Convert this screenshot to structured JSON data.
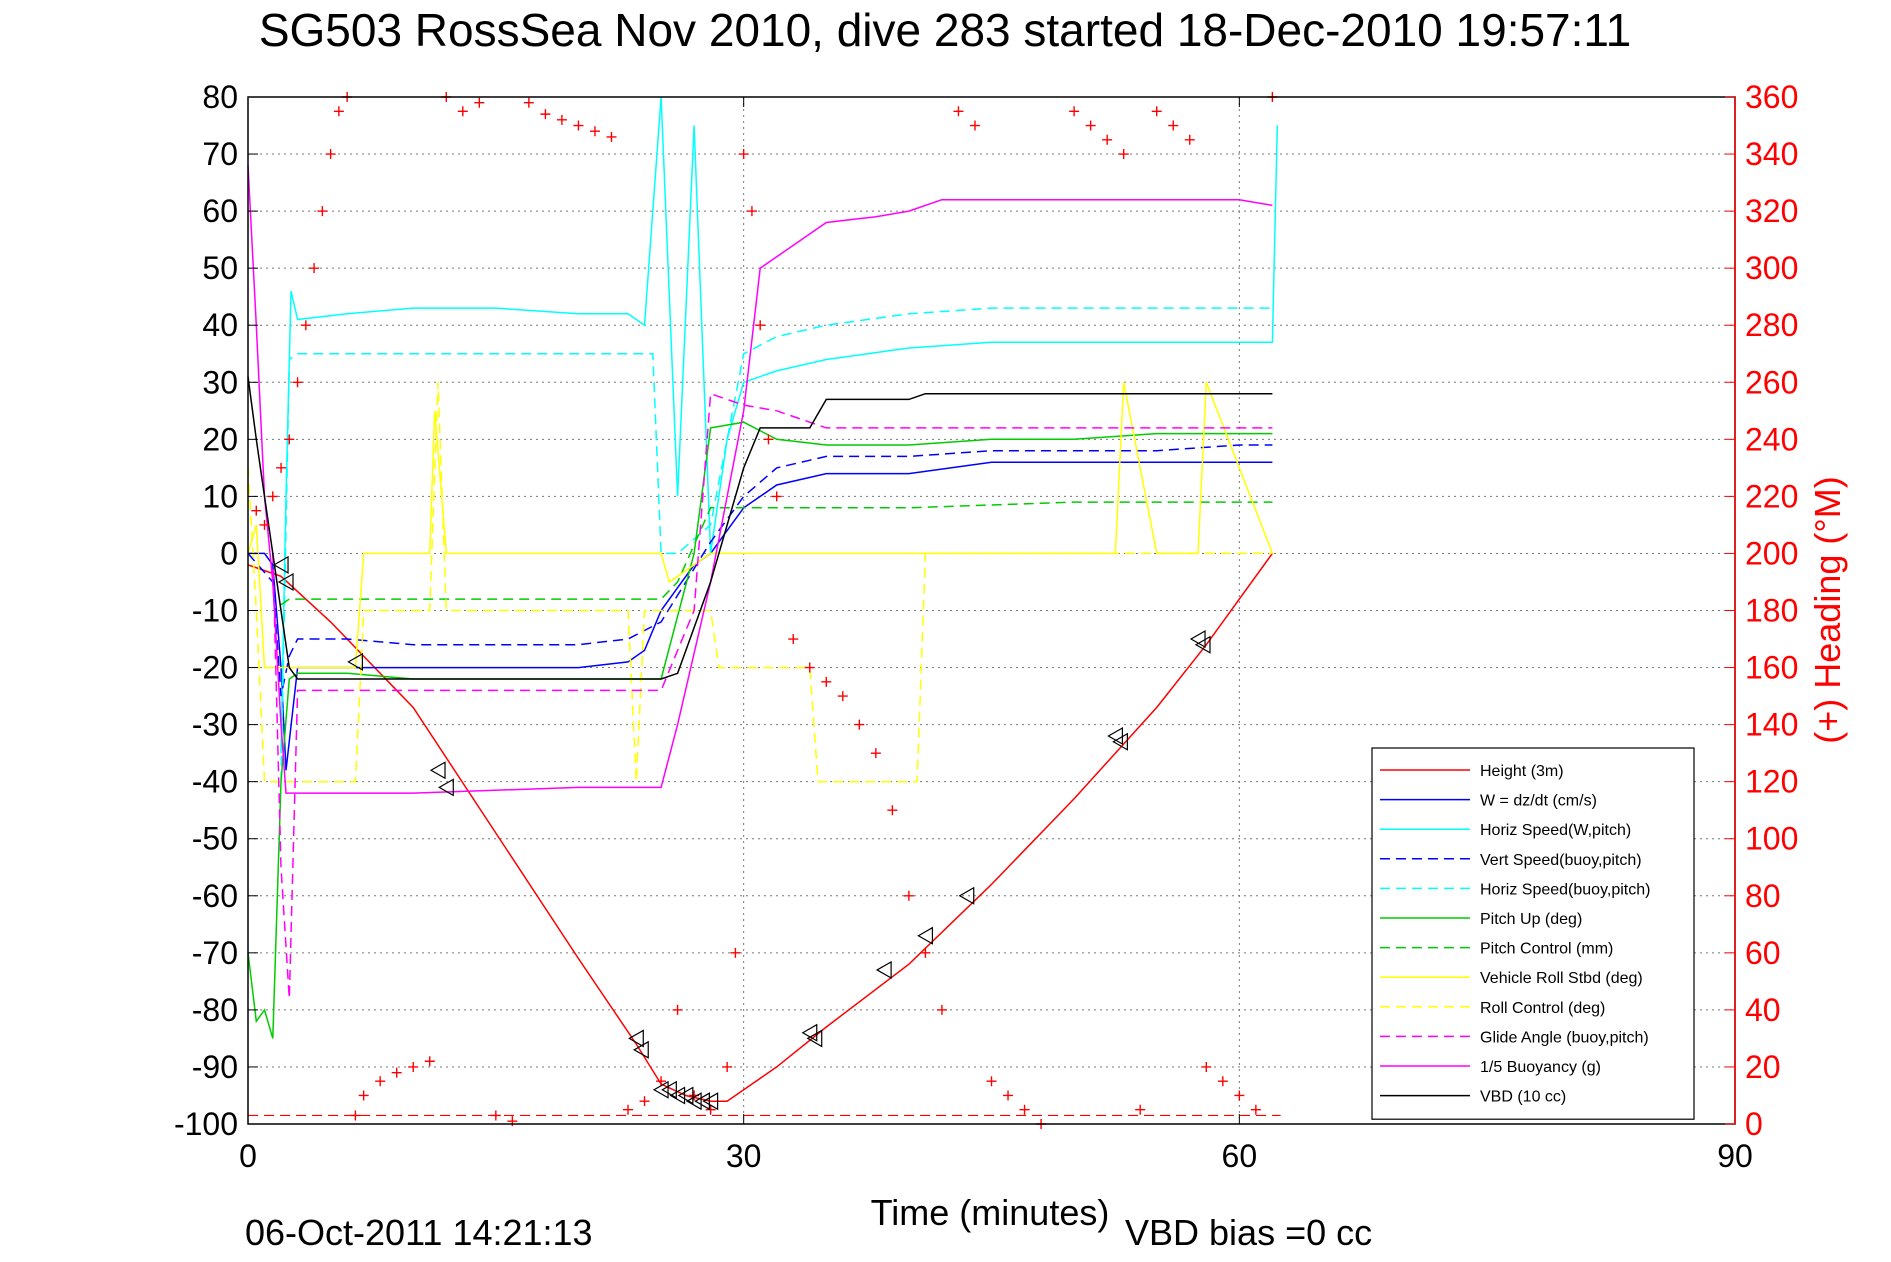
{
  "chart_data": {
    "type": "line",
    "title": "SG503 RossSea Nov 2010, dive 283 started 18-Dec-2010 19:57:11",
    "xlabel": "Time (minutes)",
    "ylabel_right": "(+) Heading (°M)",
    "footer_left": "06-Oct-2011 14:21:13",
    "footer_right": "VBD bias =0 cc",
    "xlim": [
      0,
      90
    ],
    "ylim": [
      -100,
      80
    ],
    "ylim_right": [
      0,
      360
    ],
    "x_ticks": [
      "0",
      "30",
      "60",
      "90"
    ],
    "x_tick_values": [
      0,
      30,
      60,
      90
    ],
    "y_ticks": [
      "80",
      "70",
      "60",
      "50",
      "40",
      "30",
      "20",
      "10",
      "0",
      "-10",
      "-20",
      "-30",
      "-40",
      "-50",
      "-60",
      "-70",
      "-80",
      "-90",
      "-100"
    ],
    "y_tick_values": [
      80,
      70,
      60,
      50,
      40,
      30,
      20,
      10,
      0,
      -10,
      -20,
      -30,
      -40,
      -50,
      -60,
      -70,
      -80,
      -90,
      -100
    ],
    "y_right_ticks": [
      "360",
      "340",
      "320",
      "300",
      "280",
      "260",
      "240",
      "220",
      "200",
      "180",
      "160",
      "140",
      "120",
      "100",
      "80",
      "60",
      "40",
      "20",
      "0"
    ],
    "y_right_tick_values": [
      360,
      340,
      320,
      300,
      280,
      260,
      240,
      220,
      200,
      180,
      160,
      140,
      120,
      100,
      80,
      60,
      40,
      20,
      0
    ],
    "grid": true,
    "legend_position": "bottom-right",
    "series": [
      {
        "name": "Height (3m)",
        "color": "#ff0000",
        "dash": "solid",
        "x": [
          0,
          2,
          5,
          10,
          15,
          20,
          23.5,
          25,
          26.5,
          28,
          29,
          30,
          32,
          35,
          40,
          45,
          50,
          55,
          58,
          62
        ],
        "y": [
          -2,
          -4,
          -12,
          -27,
          -49,
          -71,
          -86,
          -93,
          -95,
          -96,
          -96,
          -94,
          -90,
          -83,
          -72,
          -58,
          -43,
          -27,
          -16,
          0
        ]
      },
      {
        "name": "W = dz/dt (cm/s)",
        "color": "#0000ff",
        "dash": "solid",
        "x": [
          0,
          1,
          1.5,
          2,
          2.3,
          3,
          6,
          10,
          15,
          20,
          23,
          24,
          25,
          26,
          27,
          28,
          29,
          30,
          32,
          35,
          40,
          45,
          50,
          55,
          60,
          62
        ],
        "y": [
          0,
          0,
          -2,
          -20,
          -38,
          -20,
          -20,
          -20,
          -20,
          -20,
          -19,
          -17,
          -10,
          -6,
          -2,
          0,
          4,
          8,
          12,
          14,
          14,
          16,
          16,
          16,
          16,
          16
        ]
      },
      {
        "name": "Horiz Speed(W,pitch)",
        "color": "#00ffff",
        "dash": "solid",
        "x": [
          2,
          2.3,
          2.6,
          3,
          6,
          10,
          15,
          20,
          23,
          24,
          25,
          26,
          27,
          28,
          29,
          30,
          32,
          35,
          40,
          45,
          50,
          55,
          60,
          62,
          62.3
        ],
        "y": [
          -35,
          10,
          46,
          41,
          42,
          43,
          43,
          42,
          42,
          40,
          80,
          10,
          75,
          0,
          20,
          30,
          32,
          34,
          36,
          37,
          37,
          37,
          37,
          37,
          75
        ]
      },
      {
        "name": "Vert Speed(buoy,pitch)",
        "color": "#0000ff",
        "dash": "dashed",
        "x": [
          0,
          1.5,
          2,
          2.5,
          3,
          6,
          10,
          15,
          20,
          23,
          25,
          28,
          30,
          32,
          35,
          40,
          45,
          50,
          55,
          60,
          62
        ],
        "y": [
          0,
          -5,
          -25,
          -18,
          -15,
          -15,
          -16,
          -16,
          -16,
          -15,
          -12,
          2,
          10,
          15,
          17,
          17,
          18,
          18,
          18,
          19,
          19
        ]
      },
      {
        "name": "Horiz Speed(buoy,pitch)",
        "color": "#00ffff",
        "dash": "dashed",
        "x": [
          2,
          2.5,
          3,
          6,
          10,
          15,
          20,
          23,
          24.5,
          25,
          26,
          28,
          30,
          32,
          35,
          40,
          45,
          50,
          55,
          60,
          62
        ],
        "y": [
          -40,
          34,
          35,
          35,
          35,
          35,
          35,
          35,
          35,
          0,
          0,
          5,
          35,
          38,
          40,
          42,
          43,
          43,
          43,
          43,
          43
        ]
      },
      {
        "name": "Pitch Up (deg)",
        "color": "#00cc00",
        "dash": "solid",
        "x": [
          0,
          0.5,
          1,
          1.5,
          2,
          2.5,
          3,
          6,
          10,
          15,
          20,
          23,
          25,
          27,
          28,
          30,
          32,
          35,
          40,
          45,
          50,
          55,
          60,
          62
        ],
        "y": [
          -70,
          -82,
          -80,
          -85,
          -40,
          -22,
          -21,
          -21,
          -22,
          -22,
          -22,
          -22,
          -22,
          0,
          22,
          23,
          20,
          19,
          19,
          20,
          20,
          21,
          21,
          21
        ]
      },
      {
        "name": "Pitch Control (mm)",
        "color": "#00cc00",
        "dash": "dashed",
        "x": [
          2,
          2.5,
          10,
          20,
          23,
          25,
          26,
          28,
          30,
          35,
          40,
          50,
          60,
          62
        ],
        "y": [
          -9,
          -8,
          -8,
          -8,
          -8,
          -8,
          -5,
          8,
          8,
          8,
          8,
          9,
          9,
          9
        ]
      },
      {
        "name": "Vehicle Roll Stbd (deg)",
        "color": "#ffff00",
        "dash": "solid",
        "x": [
          0,
          0.5,
          1,
          6.5,
          7,
          10,
          11,
          11.3,
          12,
          20,
          25,
          25.5,
          28,
          28.5,
          35,
          35.5,
          38,
          40,
          40.5,
          45,
          46,
          50,
          52.5,
          53,
          55,
          57.5,
          58,
          62
        ],
        "y": [
          0,
          5,
          -20,
          -20,
          0,
          0,
          0,
          25,
          0,
          0,
          0,
          -5,
          0,
          0,
          0,
          0,
          0,
          0,
          0,
          0,
          0,
          0,
          0,
          30,
          0,
          0,
          30,
          0
        ]
      },
      {
        "name": "Roll Control (deg)",
        "color": "#ffff00",
        "dash": "dashed",
        "x": [
          0,
          0.5,
          1,
          6.5,
          7,
          10,
          11,
          11.5,
          12,
          23,
          23.5,
          24,
          25,
          28,
          28.5,
          34,
          34.5,
          38,
          40.5,
          41,
          55,
          58,
          62
        ],
        "y": [
          15,
          -10,
          -40,
          -40,
          -10,
          -10,
          -10,
          30,
          -10,
          -10,
          -40,
          -10,
          -10,
          -10,
          -20,
          -20,
          -40,
          -40,
          -40,
          0,
          0,
          0,
          0
        ]
      },
      {
        "name": "Glide Angle (buoy,pitch)",
        "color": "#ff00ff",
        "dash": "dashed",
        "x": [
          1.5,
          2,
          2.5,
          3,
          6,
          10,
          15,
          20,
          23,
          25,
          27,
          28,
          30,
          32,
          35,
          40,
          45,
          50,
          55,
          60,
          62
        ],
        "y": [
          0,
          -55,
          -78,
          -24,
          -24,
          -24,
          -24,
          -24,
          -24,
          -24,
          -10,
          28,
          26,
          25,
          22,
          22,
          22,
          22,
          22,
          22,
          22
        ]
      },
      {
        "name": "1/5 Buoyancy (g)",
        "color": "#ff00ff",
        "dash": "solid",
        "x": [
          0,
          0.5,
          1,
          1.5,
          2,
          2.3,
          3,
          10,
          20,
          25,
          26,
          28,
          30,
          31,
          35,
          38,
          40,
          42,
          50,
          55,
          60,
          62
        ],
        "y": [
          68,
          40,
          10,
          -5,
          -30,
          -42,
          -42,
          -42,
          -41,
          -41,
          -30,
          -5,
          25,
          50,
          58,
          59,
          60,
          62,
          62,
          62,
          62,
          61
        ]
      },
      {
        "name": "VBD (10 cc)",
        "color": "#000000",
        "dash": "solid",
        "x": [
          0,
          0.5,
          1,
          1.5,
          2,
          2.5,
          3,
          10,
          20,
          25,
          26,
          28,
          30,
          31,
          33,
          34,
          35,
          40,
          41,
          42,
          50,
          55,
          60,
          62
        ],
        "y": [
          31,
          20,
          10,
          0,
          -10,
          -20,
          -22,
          -22,
          -22,
          -22,
          -21,
          -5,
          15,
          22,
          22,
          22,
          27,
          27,
          28,
          28,
          28,
          28,
          28,
          28
        ]
      }
    ],
    "heading_scatter": {
      "name": "(+) Heading (°M)",
      "color": "#ff0000",
      "marker": "+",
      "axis": "right",
      "x": [
        0.5,
        1,
        1.5,
        2,
        2.5,
        3,
        3.5,
        4,
        4.5,
        5,
        5.5,
        6,
        6.5,
        7,
        8,
        9,
        10,
        11,
        12,
        13,
        14,
        15,
        16,
        17,
        18,
        19,
        20,
        21,
        22,
        23,
        24,
        25,
        26,
        27,
        28,
        29,
        29.5,
        30,
        30.5,
        31,
        31.5,
        32,
        33,
        34,
        35,
        36,
        37,
        38,
        39,
        40,
        41,
        42,
        43,
        44,
        45,
        46,
        47,
        48,
        50,
        51,
        52,
        53,
        54,
        55,
        56,
        57,
        58,
        59,
        60,
        61,
        62
      ],
      "y": [
        215,
        210,
        220,
        230,
        240,
        260,
        280,
        300,
        320,
        340,
        355,
        360,
        3,
        10,
        15,
        18,
        20,
        22,
        360,
        355,
        358,
        3,
        1,
        358,
        354,
        352,
        350,
        348,
        346,
        5,
        8,
        15,
        40,
        10,
        5,
        20,
        60,
        340,
        320,
        280,
        240,
        220,
        170,
        160,
        155,
        150,
        140,
        130,
        110,
        80,
        60,
        40,
        355,
        350,
        15,
        10,
        5,
        0,
        355,
        350,
        345,
        340,
        5,
        355,
        350,
        345,
        20,
        15,
        10,
        5,
        360
      ]
    },
    "triangle_markers": {
      "color": "#000000",
      "x": [
        2,
        2.3,
        6.5,
        11.5,
        12,
        23.5,
        23.8,
        25,
        25.5,
        26,
        26.5,
        27,
        27.5,
        28,
        34,
        34.3,
        38.5,
        41,
        43.5,
        52.5,
        52.8,
        57.5,
        57.8
      ],
      "y": [
        -2,
        -5,
        -19,
        -38,
        -41,
        -85,
        -87,
        -94,
        -94,
        -95,
        -95,
        -96,
        -96,
        -96,
        -84,
        -85,
        -73,
        -67,
        -60,
        -32,
        -33,
        -15,
        -16
      ]
    },
    "reference_lines": [
      {
        "y": -98.5,
        "color": "#ff0000",
        "dash": "dashed"
      }
    ]
  }
}
